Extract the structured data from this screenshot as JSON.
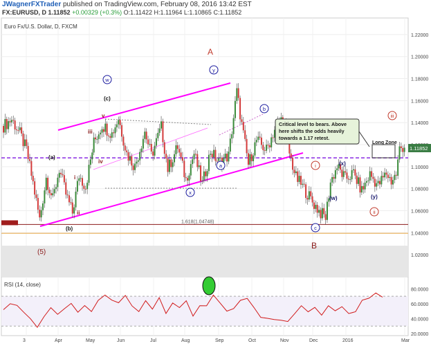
{
  "header": {
    "user": "JWagnerFXTrader",
    "published": "published on TradingView.com, February 08, 2016 13:42 EST",
    "symbol": "FX:EURUSD, D",
    "last": "1.11852",
    "change": "+0.00329 (+0.3%)",
    "ohlc": "O:1.11422 H:1.11964 L:1.10865 C:1.11852"
  },
  "chart_data": {
    "type": "candlestick",
    "title": "Euro Fx/U.S. Dollar, D, FXCM",
    "price_axis": {
      "min": 1.0,
      "max": 1.235,
      "ticks": [
        "1.22000",
        "1.20000",
        "1.18000",
        "1.16000",
        "1.14000",
        "1.12000",
        "1.10000",
        "1.08000",
        "1.06000",
        "1.04000",
        "1.02000"
      ],
      "last_price_label": "1.11852"
    },
    "time_axis": {
      "labels": [
        "3",
        "Apr",
        "May",
        "Jun",
        "Jul",
        "Aug",
        "Sep",
        "Oct",
        "Nov",
        "Dec",
        "2016",
        "Mar"
      ]
    },
    "price_path": [
      [
        0,
        1.137
      ],
      [
        5,
        1.143
      ],
      [
        10,
        1.13
      ],
      [
        14,
        1.115
      ],
      [
        18,
        1.085
      ],
      [
        22,
        1.052
      ],
      [
        26,
        1.09
      ],
      [
        30,
        1.07
      ],
      [
        34,
        1.098
      ],
      [
        38,
        1.075
      ],
      [
        42,
        1.058
      ],
      [
        46,
        1.092
      ],
      [
        50,
        1.082
      ],
      [
        55,
        1.122
      ],
      [
        60,
        1.138
      ],
      [
        66,
        1.13
      ],
      [
        70,
        1.144
      ],
      [
        75,
        1.112
      ],
      [
        80,
        1.1
      ],
      [
        86,
        1.132
      ],
      [
        90,
        1.11
      ],
      [
        96,
        1.136
      ],
      [
        100,
        1.098
      ],
      [
        106,
        1.118
      ],
      [
        111,
        1.088
      ],
      [
        116,
        1.112
      ],
      [
        121,
        1.084
      ],
      [
        126,
        1.114
      ],
      [
        131,
        1.104
      ],
      [
        137,
        1.11
      ],
      [
        142,
        1.168
      ],
      [
        145,
        1.138
      ],
      [
        149,
        1.102
      ],
      [
        154,
        1.124
      ],
      [
        160,
        1.115
      ],
      [
        165,
        1.134
      ],
      [
        170,
        1.145
      ],
      [
        174,
        1.112
      ],
      [
        178,
        1.09
      ],
      [
        183,
        1.08
      ],
      [
        188,
        1.068
      ],
      [
        193,
        1.058
      ],
      [
        196,
        1.054
      ],
      [
        199,
        1.086
      ],
      [
        203,
        1.1
      ],
      [
        208,
        1.089
      ],
      [
        213,
        1.094
      ],
      [
        218,
        1.078
      ],
      [
        223,
        1.093
      ],
      [
        228,
        1.083
      ],
      [
        233,
        1.094
      ],
      [
        236,
        1.087
      ],
      [
        239,
        1.093
      ],
      [
        241,
        1.116
      ],
      [
        244,
        1.119
      ]
    ],
    "levels": [
      {
        "label": "1.618(1.04748)",
        "value": 1.0475,
        "color": "#8b1a1a"
      },
      {
        "label": "",
        "value": 1.108,
        "color": "#8a2be2",
        "style": "dashed"
      },
      {
        "label": "",
        "value": 1.0395,
        "color": "#e8a33d"
      }
    ],
    "annotations": [
      "A",
      "B",
      "(5)",
      "(a)",
      "(b)",
      "(c)",
      "i",
      "ii",
      "iii",
      "iv",
      "v",
      "w",
      "x",
      "y",
      "a",
      "b",
      "c",
      "(w)",
      "(x)",
      "(y)",
      "Long Zone"
    ],
    "callout": "Critical level to bears.  Above here shifts the odds heavily towards a 1.17 retest.",
    "indicator": {
      "title": "RSI (14, close)",
      "ticks": [
        "80.0000",
        "60.0000",
        "40.0000",
        "20.0000"
      ],
      "range": [
        20,
        85
      ],
      "levels": [
        70,
        30
      ],
      "values": [
        55,
        62,
        58,
        48,
        38,
        30,
        45,
        52,
        44,
        56,
        62,
        48,
        55,
        52,
        65,
        72,
        62,
        60,
        70,
        56,
        52,
        64,
        55,
        66,
        48,
        60,
        52,
        62,
        46,
        60,
        58,
        72,
        63,
        50,
        54,
        66,
        70,
        56,
        44,
        42,
        38,
        36,
        34,
        48,
        56,
        50,
        56,
        44,
        58,
        52,
        56,
        48,
        52,
        64,
        66,
        72,
        68
      ]
    },
    "grid": true
  }
}
